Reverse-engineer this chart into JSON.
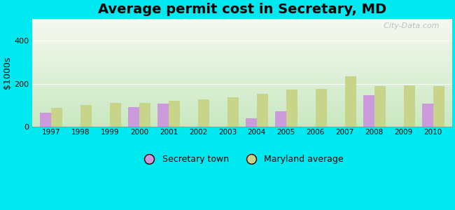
{
  "title": "Average permit cost in Secretary, MD",
  "ylabel": "$1000s",
  "years": [
    1997,
    1998,
    1999,
    2000,
    2001,
    2002,
    2003,
    2004,
    2005,
    2006,
    2007,
    2008,
    2009,
    2010
  ],
  "secretary_town": [
    65,
    0,
    0,
    90,
    108,
    0,
    0,
    40,
    72,
    0,
    0,
    148,
    0,
    108
  ],
  "maryland_avg": [
    88,
    100,
    112,
    112,
    120,
    128,
    138,
    152,
    172,
    175,
    235,
    190,
    192,
    188
  ],
  "town_color": "#cc99dd",
  "avg_color": "#c8d48a",
  "bg_outer": "#00e8f0",
  "bg_plot_top": "#f5f8f0",
  "bg_plot_bottom": "#c8e8c0",
  "ylim": [
    0,
    500
  ],
  "yticks": [
    0,
    200,
    400
  ],
  "title_fontsize": 14,
  "legend_labels": [
    "Secretary town",
    "Maryland average"
  ],
  "watermark": "  City-Data.com"
}
